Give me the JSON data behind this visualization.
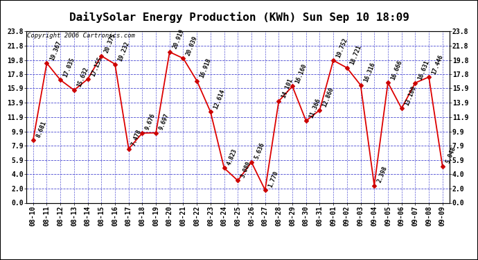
{
  "title": "DailySolar Energy Production (KWh) Sun Sep 10 18:09",
  "copyright": "Copyright 2006 Cartronics.com",
  "x_labels": [
    "08-10",
    "08-11",
    "08-12",
    "08-13",
    "08-14",
    "08-15",
    "08-16",
    "08-17",
    "08-18",
    "08-19",
    "08-20",
    "08-21",
    "08-22",
    "08-23",
    "08-24",
    "08-25",
    "08-26",
    "08-27",
    "08-28",
    "08-29",
    "08-30",
    "08-31",
    "09-01",
    "09-02",
    "09-03",
    "09-04",
    "09-05",
    "09-06",
    "09-07",
    "09-08",
    "09-09"
  ],
  "y_values": [
    8.681,
    19.367,
    17.035,
    15.632,
    17.155,
    20.375,
    19.232,
    7.478,
    9.676,
    9.697,
    20.919,
    20.039,
    16.918,
    12.614,
    4.823,
    3.08,
    5.636,
    1.77,
    14.101,
    16.16,
    11.366,
    12.86,
    19.752,
    18.721,
    16.316,
    2.398,
    16.666,
    13.1,
    16.631,
    17.446,
    5.048
  ],
  "y_ticks": [
    0.0,
    2.0,
    4.0,
    5.9,
    7.9,
    9.9,
    11.9,
    13.9,
    15.9,
    17.8,
    19.8,
    21.8,
    23.8
  ],
  "y_tick_labels": [
    "0.0",
    "2.0",
    "4.0",
    "5.9",
    "7.9",
    "9.9",
    "11.9",
    "13.9",
    "15.9",
    "17.8",
    "19.8",
    "21.8",
    "23.8"
  ],
  "line_color": "#dd0000",
  "marker_color": "#cc0000",
  "bg_color": "#ffffff",
  "grid_color": "#3333cc",
  "title_fontsize": 11.5,
  "tick_fontsize": 7,
  "annot_fontsize": 6,
  "copyright_fontsize": 6.5,
  "y_min": 0.0,
  "y_max": 23.8
}
